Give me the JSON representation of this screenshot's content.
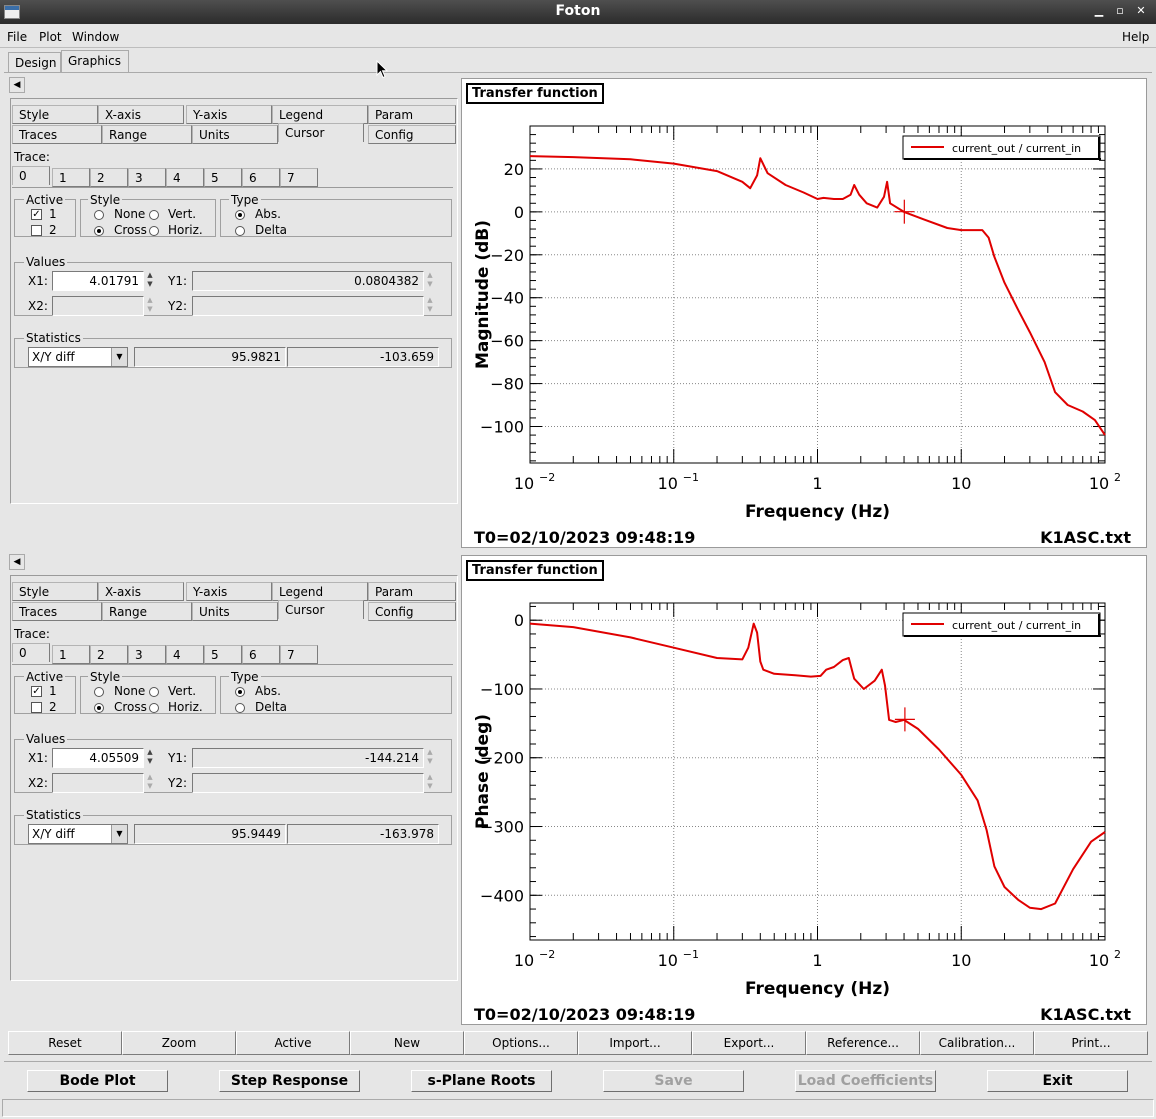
{
  "window": {
    "title": "Foton"
  },
  "menu": [
    "File",
    "Plot",
    "Window"
  ],
  "help": "Help",
  "tabs": [
    "Design",
    "Graphics"
  ],
  "option_tabs_row1": [
    "Style",
    "X-axis",
    "Y-axis",
    "Legend",
    "Param"
  ],
  "option_tabs_row2": [
    "Traces",
    "Range",
    "Units",
    "Cursor",
    "Config"
  ],
  "labels": {
    "trace": "Trace:",
    "active": "Active",
    "style": "Style",
    "type": "Type",
    "values": "Values",
    "statistics": "Statistics",
    "x1": "X1:",
    "x2": "X2:",
    "y1": "Y1:",
    "y2": "Y2:"
  },
  "trace_tabs": [
    "0",
    "1",
    "2",
    "3",
    "4",
    "5",
    "6",
    "7"
  ],
  "active_items": [
    "1",
    "2"
  ],
  "style_items": [
    "None",
    "Vert.",
    "Cross",
    "Horiz."
  ],
  "type_items": [
    "Abs.",
    "Delta"
  ],
  "panels": [
    {
      "x1": "4.01791",
      "y1": "0.0804382",
      "stat_mode": "X/Y diff",
      "stat_x": "95.9821",
      "stat_y": "-103.659"
    },
    {
      "x1": "4.05509",
      "y1": "-144.214",
      "stat_mode": "X/Y diff",
      "stat_x": "95.9449",
      "stat_y": "-163.978"
    }
  ],
  "plots": [
    {
      "title": "Transfer function",
      "legend": "current_out / current_in",
      "ylabel": "Magnitude (dB)",
      "xlabel": "Frequency (Hz)",
      "t0": "T0=02/10/2023 09:48:19",
      "file": "K1ASC.txt",
      "yticks": [
        "20",
        "0",
        "−20",
        "−40",
        "−60",
        "−80",
        "−100"
      ]
    },
    {
      "title": "Transfer function",
      "legend": "current_out / current_in",
      "ylabel": "Phase (deg)",
      "xlabel": "Frequency (Hz)",
      "t0": "T0=02/10/2023 09:48:19",
      "file": "K1ASC.txt",
      "yticks": [
        "0",
        "−100",
        "−200",
        "−300",
        "−400"
      ]
    }
  ],
  "xticks": {
    "base": "10",
    "exps": [
      "−2",
      "−1",
      "",
      ""
    ],
    "mid": [
      "1",
      "10"
    ]
  },
  "chart_data": [
    {
      "type": "line",
      "title": "",
      "xlabel": "Frequency (Hz)",
      "ylabel": "Magnitude (dB)",
      "xscale": "log",
      "xlim": [
        0.01,
        100
      ],
      "ylim": [
        -117,
        40
      ],
      "grid": true,
      "legend": "top-right",
      "series": [
        {
          "name": "current_out / current_in",
          "color": "#e00000",
          "x": [
            0.01,
            0.02,
            0.05,
            0.1,
            0.2,
            0.3,
            0.34,
            0.38,
            0.4,
            0.45,
            0.6,
            0.8,
            1.0,
            1.1,
            1.3,
            1.5,
            1.7,
            1.8,
            1.95,
            2.2,
            2.6,
            2.9,
            3.05,
            3.2,
            4.0,
            5.5,
            8.0,
            10.0,
            12.0,
            14.0,
            15.5,
            17.0,
            20.0,
            25.0,
            30.0,
            38.0,
            45.0,
            55.0,
            70.0,
            85.0,
            100.0
          ],
          "y": [
            26,
            25.5,
            24.5,
            22.5,
            19,
            14,
            11,
            17,
            25,
            18,
            12.5,
            9,
            6,
            6.5,
            6,
            6,
            8,
            12.5,
            8,
            4,
            2,
            7,
            14,
            4,
            0,
            -3.5,
            -7.5,
            -8.5,
            -8.5,
            -8.5,
            -12,
            -21,
            -33,
            -46,
            -56,
            -70,
            -84,
            -90,
            -93,
            -97,
            -104
          ]
        }
      ],
      "cursor": {
        "x": 4.01791,
        "y": 0.0804382
      }
    },
    {
      "type": "line",
      "title": "",
      "xlabel": "Frequency (Hz)",
      "ylabel": "Phase (deg)",
      "xscale": "log",
      "xlim": [
        0.01,
        100
      ],
      "ylim": [
        -465,
        25
      ],
      "grid": true,
      "legend": "top-right",
      "series": [
        {
          "name": "current_out / current_in",
          "color": "#e00000",
          "x": [
            0.01,
            0.02,
            0.05,
            0.1,
            0.2,
            0.3,
            0.33,
            0.36,
            0.38,
            0.4,
            0.42,
            0.5,
            0.7,
            0.9,
            1.05,
            1.15,
            1.3,
            1.5,
            1.65,
            1.8,
            2.1,
            2.5,
            2.8,
            2.95,
            3.15,
            3.5,
            4.0,
            5.0,
            7.0,
            10.0,
            13.0,
            15.0,
            17.0,
            20.0,
            25.0,
            30.0,
            36.0,
            45.0,
            60.0,
            80.0,
            100.0
          ],
          "y": [
            -5,
            -10,
            -25,
            -40,
            -55,
            -57,
            -40,
            -5,
            -18,
            -60,
            -72,
            -78,
            -80,
            -82,
            -81,
            -72,
            -68,
            -58,
            -55,
            -85,
            -100,
            -88,
            -72,
            -95,
            -145,
            -148,
            -145,
            -158,
            -188,
            -225,
            -262,
            -305,
            -358,
            -388,
            -407,
            -418,
            -420,
            -412,
            -362,
            -322,
            -308
          ]
        }
      ],
      "cursor": {
        "x": 4.05509,
        "y": -144.214
      }
    }
  ],
  "toolbar": [
    "Reset",
    "Zoom",
    "Active",
    "New",
    "Options...",
    "Import...",
    "Export...",
    "Reference...",
    "Calibration...",
    "Print..."
  ],
  "bottom_buttons": {
    "bode": "Bode Plot",
    "step": "Step Response",
    "splane": "s-Plane Roots",
    "save": "Save",
    "load": "Load Coefficients",
    "exit": "Exit"
  }
}
